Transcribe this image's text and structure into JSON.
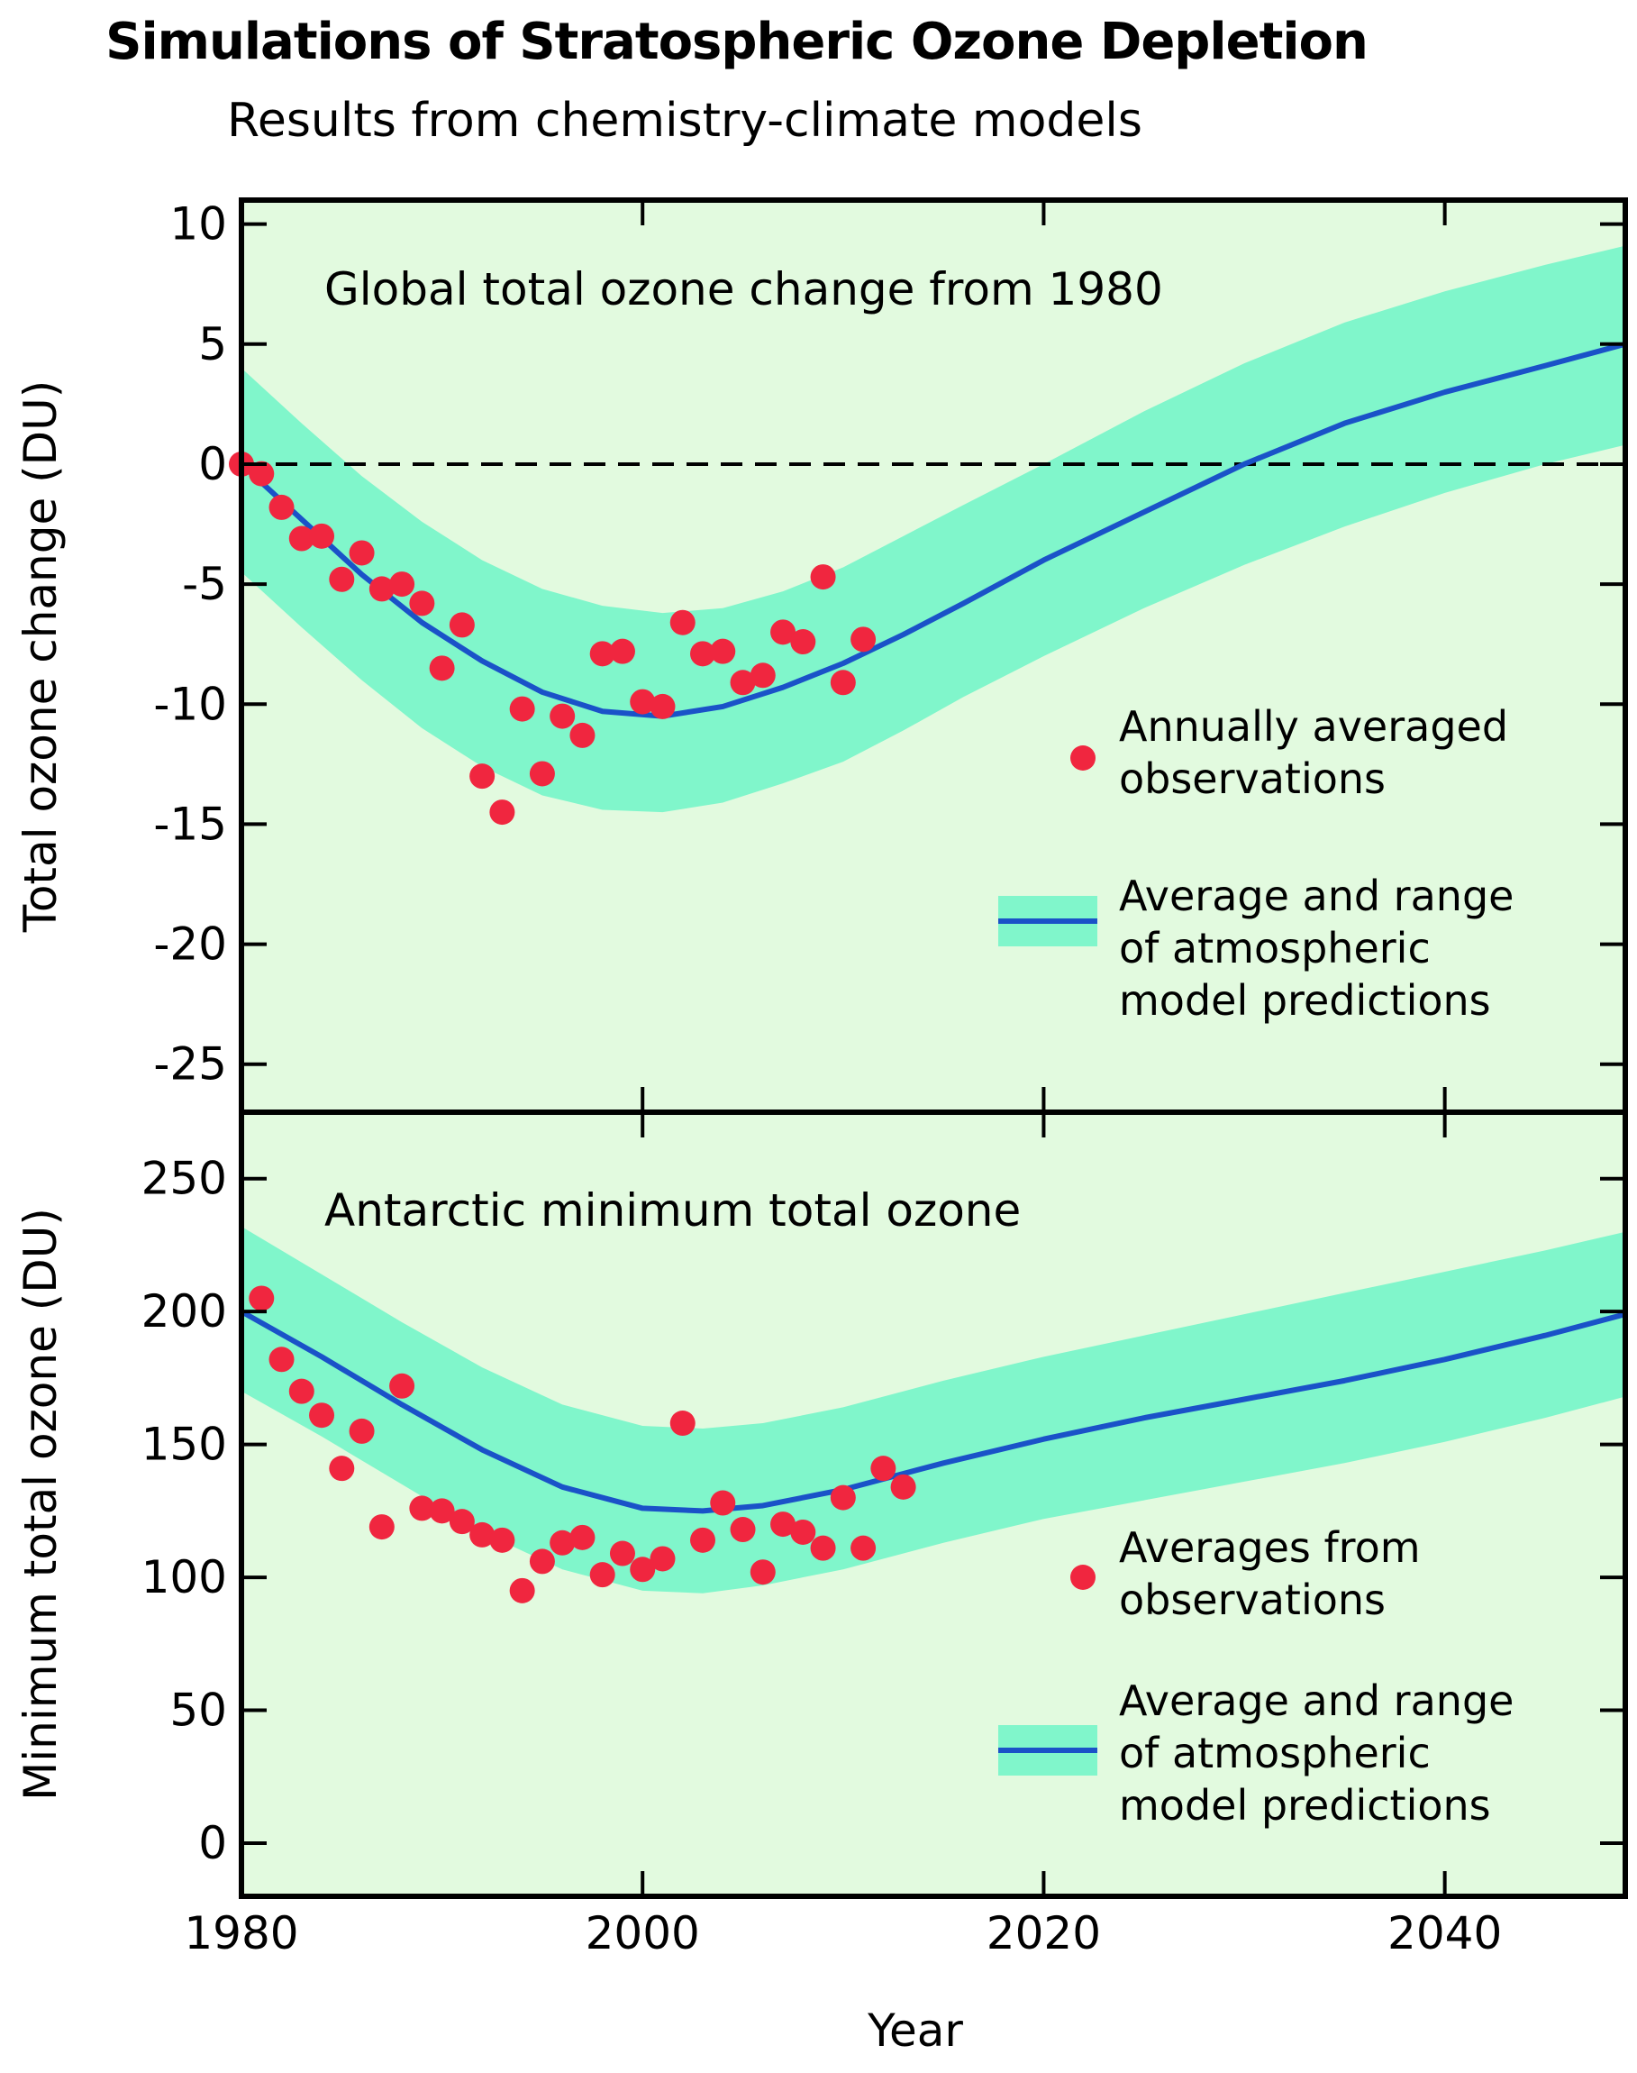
{
  "title": "Simulations of Stratospheric Ozone Depletion",
  "subtitle": "Results from chemistry-climate models",
  "xlabel": "Year",
  "colors": {
    "background": "#e2fadf",
    "band": "#80f6cb",
    "line": "#1a52c8",
    "points": "#f0263f"
  },
  "chart_data": [
    {
      "type": "line",
      "title": "Global total ozone change from 1980",
      "xlabel": "Year",
      "ylabel": "Total ozone change (DU)",
      "xlim": [
        1980,
        2049
      ],
      "ylim": [
        -27,
        11
      ],
      "xticks": [
        1980,
        2000,
        2020,
        2040
      ],
      "xtick_labels": [
        "1980",
        "2000",
        "2020",
        "2040"
      ],
      "yticks": [
        10,
        5,
        0,
        -5,
        -10,
        -15,
        -20,
        -25
      ],
      "ytick_labels": [
        "10",
        "5",
        "0",
        "-5",
        "-10",
        "-15",
        "-20",
        "-25"
      ],
      "reference_line": 0,
      "grid": false,
      "legend_position": "lower-right",
      "legend": {
        "points_label": [
          "Annually averaged",
          "observations"
        ],
        "band_label": [
          "Average and range",
          "of atmospheric",
          "model predictions"
        ]
      },
      "model": {
        "x": [
          1980,
          1983,
          1986,
          1989,
          1992,
          1995,
          1998,
          2001,
          2004,
          2007,
          2010,
          2013,
          2016,
          2020,
          2025,
          2030,
          2035,
          2040,
          2045,
          2049
        ],
        "mean": [
          0,
          -2.3,
          -4.6,
          -6.6,
          -8.2,
          -9.5,
          -10.3,
          -10.5,
          -10.1,
          -9.3,
          -8.3,
          -7.1,
          -5.8,
          -4.0,
          -2.0,
          0.0,
          1.7,
          3.0,
          4.1,
          5.0
        ],
        "lower": [
          -4.5,
          -6.8,
          -9.0,
          -11.0,
          -12.6,
          -13.8,
          -14.4,
          -14.5,
          -14.1,
          -13.3,
          -12.4,
          -11.1,
          -9.7,
          -8.0,
          -6.0,
          -4.2,
          -2.6,
          -1.2,
          0.0,
          0.8
        ],
        "upper": [
          4.0,
          1.7,
          -0.5,
          -2.4,
          -4.0,
          -5.2,
          -5.9,
          -6.2,
          -6.0,
          -5.3,
          -4.3,
          -3.0,
          -1.7,
          0.0,
          2.2,
          4.2,
          5.9,
          7.2,
          8.3,
          9.1
        ]
      },
      "observations": {
        "x": [
          1980,
          1981,
          1982,
          1983,
          1984,
          1985,
          1986,
          1987,
          1988,
          1989,
          1990,
          1991,
          1992,
          1993,
          1994,
          1995,
          1996,
          1997,
          1998,
          1999,
          2000,
          2001,
          2002,
          2003,
          2004,
          2005,
          2006,
          2007,
          2008,
          2009,
          2010,
          2011
        ],
        "y": [
          0,
          -0.4,
          -1.8,
          -3.1,
          -3.0,
          -4.8,
          -3.7,
          -5.2,
          -5.0,
          -5.8,
          -8.5,
          -6.7,
          -13.0,
          -14.5,
          -10.2,
          -12.9,
          -10.5,
          -11.3,
          -7.9,
          -7.8,
          -9.9,
          -10.1,
          -6.6,
          -7.9,
          -7.8,
          -9.1,
          -8.8,
          -7.0,
          -7.4,
          -4.7,
          -9.1,
          -7.3
        ]
      }
    },
    {
      "type": "line",
      "title": "Antarctic minimum total ozone",
      "xlabel": "Year",
      "ylabel": "Minimum total ozone (DU)",
      "xlim": [
        1980,
        2049
      ],
      "ylim": [
        -20,
        275
      ],
      "xticks": [
        1980,
        2000,
        2020,
        2040
      ],
      "xtick_labels": [
        "1980",
        "2000",
        "2020",
        "2040"
      ],
      "yticks": [
        250,
        200,
        150,
        100,
        50,
        0
      ],
      "ytick_labels": [
        "250",
        "200",
        "150",
        "100",
        "50",
        "0"
      ],
      "grid": false,
      "legend_position": "lower-right",
      "legend": {
        "points_label": [
          "Averages from",
          "observations"
        ],
        "band_label": [
          "Average and range",
          "of atmospheric",
          "model predictions"
        ]
      },
      "model": {
        "x": [
          1980,
          1984,
          1988,
          1992,
          1996,
          2000,
          2003,
          2006,
          2010,
          2015,
          2020,
          2025,
          2030,
          2035,
          2040,
          2045,
          2049
        ],
        "mean": [
          200,
          183,
          165,
          148,
          134,
          126,
          125,
          127,
          133,
          143,
          152,
          160,
          167,
          174,
          182,
          191,
          199
        ],
        "lower": [
          170,
          153,
          135,
          117,
          103,
          95,
          94,
          97,
          103,
          113,
          122,
          129,
          136,
          143,
          151,
          160,
          168
        ],
        "upper": [
          232,
          214,
          196,
          179,
          165,
          157,
          156,
          158,
          164,
          174,
          183,
          191,
          199,
          207,
          215,
          223,
          230
        ]
      },
      "observations": {
        "x": [
          1981,
          1982,
          1983,
          1984,
          1985,
          1986,
          1987,
          1988,
          1989,
          1990,
          1991,
          1992,
          1993,
          1994,
          1995,
          1996,
          1997,
          1998,
          1999,
          2000,
          2001,
          2002,
          2003,
          2004,
          2005,
          2006,
          2007,
          2008,
          2009,
          2010,
          2011,
          2012,
          2013
        ],
        "y": [
          205,
          182,
          170,
          161,
          141,
          155,
          119,
          172,
          126,
          125,
          121,
          116,
          114,
          95,
          106,
          113,
          115,
          101,
          109,
          103,
          107,
          158,
          114,
          128,
          118,
          102,
          120,
          117,
          111,
          130,
          111,
          141,
          134
        ]
      }
    }
  ]
}
